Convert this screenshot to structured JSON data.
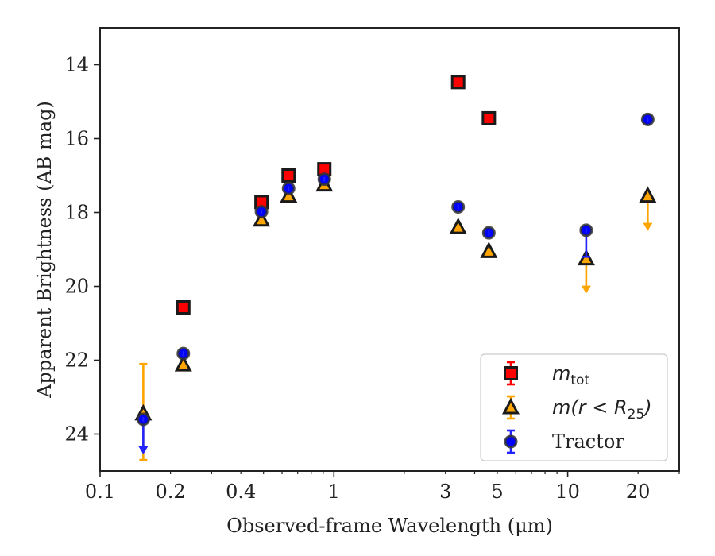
{
  "chart_data": {
    "type": "scatter",
    "title": "",
    "xlabel": "Observed-frame Wavelength (μm)",
    "ylabel": "Apparent Brightness (AB mag)",
    "x_scale": "log",
    "xlim": [
      0.1,
      30
    ],
    "ylim": [
      25.0,
      13.0
    ],
    "y_inverted": true,
    "x_ticks": [
      {
        "value": 0.1,
        "label": "0.1"
      },
      {
        "value": 0.2,
        "label": "0.2"
      },
      {
        "value": 0.4,
        "label": "0.4"
      },
      {
        "value": 1,
        "label": "1"
      },
      {
        "value": 3,
        "label": "3"
      },
      {
        "value": 5,
        "label": "5"
      },
      {
        "value": 10,
        "label": "10"
      },
      {
        "value": 20,
        "label": "20"
      }
    ],
    "y_ticks": [
      14,
      16,
      18,
      20,
      22,
      24
    ],
    "grid": false,
    "legend_position": "lower-right",
    "series": [
      {
        "name_base": "m",
        "name_sub": "tot",
        "marker": "square",
        "color": "#ff0000",
        "edge": "#1a1a1a",
        "errcolor": "#ff0000",
        "points": [
          {
            "x": 0.227,
            "y": 20.57
          },
          {
            "x": 0.49,
            "y": 17.72
          },
          {
            "x": 0.64,
            "y": 17.0
          },
          {
            "x": 0.91,
            "y": 16.83
          },
          {
            "x": 3.4,
            "y": 14.47
          },
          {
            "x": 4.6,
            "y": 15.45
          }
        ]
      },
      {
        "name_base": "m(r < R",
        "name_sub": "25",
        "name_tail": ")",
        "marker": "triangle",
        "color": "#ffa500",
        "edge": "#1a1a1a",
        "errcolor": "#ffa500",
        "points": [
          {
            "x": 0.153,
            "y": 23.45,
            "err_low": 22.1,
            "err_high": 24.7
          },
          {
            "x": 0.227,
            "y": 22.12
          },
          {
            "x": 0.49,
            "y": 18.2
          },
          {
            "x": 0.64,
            "y": 17.55
          },
          {
            "x": 0.91,
            "y": 17.25
          },
          {
            "x": 3.4,
            "y": 18.4
          },
          {
            "x": 4.6,
            "y": 19.05
          },
          {
            "x": 12.0,
            "y": 19.25,
            "upper_limit": true
          },
          {
            "x": 22.0,
            "y": 17.55,
            "upper_limit": true
          }
        ]
      },
      {
        "name": "Tractor",
        "marker": "circle",
        "color": "#0000ff",
        "edge": "#333333",
        "errcolor": "#2222ff",
        "points": [
          {
            "x": 0.153,
            "y": 23.6,
            "upper_limit": true
          },
          {
            "x": 0.227,
            "y": 21.82
          },
          {
            "x": 0.49,
            "y": 17.98
          },
          {
            "x": 0.64,
            "y": 17.35
          },
          {
            "x": 0.91,
            "y": 17.1
          },
          {
            "x": 3.4,
            "y": 17.85
          },
          {
            "x": 4.6,
            "y": 18.55
          },
          {
            "x": 12.0,
            "y": 18.48,
            "err_low": 18.48,
            "err_high": 19.2
          },
          {
            "x": 22.0,
            "y": 15.48
          }
        ]
      }
    ]
  }
}
